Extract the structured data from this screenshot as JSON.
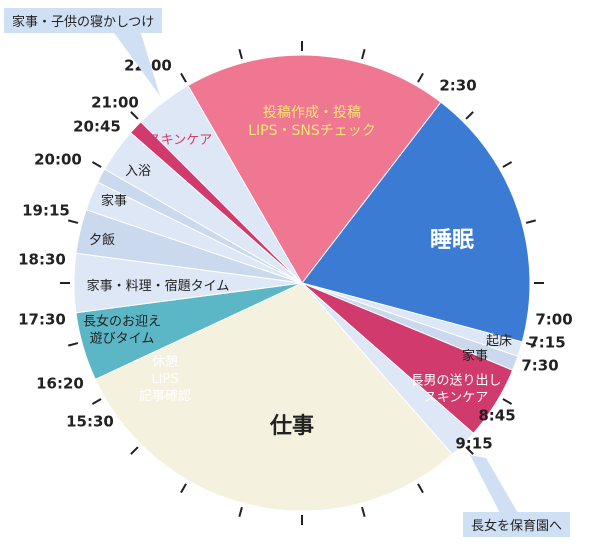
{
  "chart_data": {
    "type": "pie",
    "title": "",
    "start_time": "00:00",
    "unit": "24-hour clock",
    "colors": {
      "sleep": "#3b7bd4",
      "work": "#f4f1de",
      "skincare": "#d13a6c",
      "post": "#f07791",
      "rest": "#5bb7c6",
      "light": "#dde7f6",
      "mid": "#cbd9ee",
      "text_yellow": "#fde774",
      "tick": "#222222"
    },
    "slices": [
      {
        "label": "睡眠",
        "start": "02:30",
        "end": "07:00",
        "color_key": "sleep",
        "label_color": "#ffffff",
        "label_size": 22
      },
      {
        "label": "起床",
        "start": "07:00",
        "end": "07:15",
        "color_key": "light",
        "label_color": "#222222",
        "label_size": 13
      },
      {
        "label": "家事",
        "start": "07:15",
        "end": "07:30",
        "color_key": "mid",
        "label_color": "#222222",
        "label_size": 13
      },
      {
        "label": "長男の送り出し スキンケア",
        "start": "07:30",
        "end": "08:45",
        "color_key": "skincare",
        "label_color": "#ffffff",
        "label_size": 13
      },
      {
        "label": "長女を保育園へ",
        "start": "08:45",
        "end": "09:15",
        "color_key": "light",
        "label_color": "#222222",
        "label_size": 13
      },
      {
        "label": "仕事",
        "start": "09:15",
        "end": "16:20",
        "color_key": "work",
        "label_color": "#222222",
        "label_size": 22
      },
      {
        "label": "休憩 LIPS 記事確認",
        "start": "16:20",
        "end": "17:30",
        "color_key": "rest",
        "label_color": "#ffffff",
        "label_size": 13
      },
      {
        "label": "長女のお迎え 遊びタイム",
        "start": "17:30",
        "end": "18:30",
        "color_key": "light",
        "label_color": "#222222",
        "label_size": 13
      },
      {
        "label": "家事・料理・宿題タイム",
        "start": "18:30",
        "end": "19:15",
        "color_key": "mid",
        "label_color": "#222222",
        "label_size": 13
      },
      {
        "label": "夕飯",
        "start": "19:15",
        "end": "19:45",
        "color_key": "light",
        "label_color": "#222222",
        "label_size": 13
      },
      {
        "label": "家事",
        "start": "19:45",
        "end": "20:00",
        "color_key": "mid",
        "label_color": "#222222",
        "label_size": 13
      },
      {
        "label": "入浴",
        "start": "20:00",
        "end": "20:45",
        "color_key": "light",
        "label_color": "#222222",
        "label_size": 13
      },
      {
        "label": "スキンケア",
        "start": "20:45",
        "end": "21:00",
        "color_key": "skincare",
        "label_color": "#d13a6c",
        "label_size": 13
      },
      {
        "label": "家事・子供の寝かしつけ",
        "start": "21:00",
        "end": "22:00",
        "color_key": "light",
        "label_color": "#222222",
        "label_size": 13
      },
      {
        "label": "投稿作成・投稿 LIPS・SNSチェック",
        "start": "22:00",
        "end": "02:30",
        "color_key": "post",
        "label_color": "#fde774",
        "label_size": 14
      }
    ],
    "time_labels": [
      "22:00",
      "2:30",
      "7:00",
      "7:15",
      "7:30",
      "8:45",
      "9:15",
      "15:30",
      "16:20",
      "17:30",
      "18:30",
      "19:15",
      "20:00",
      "20:45",
      "21:00"
    ]
  },
  "callouts": {
    "top": "家事・子供の寝かしつけ",
    "bottom": "長女を保育園へ"
  }
}
